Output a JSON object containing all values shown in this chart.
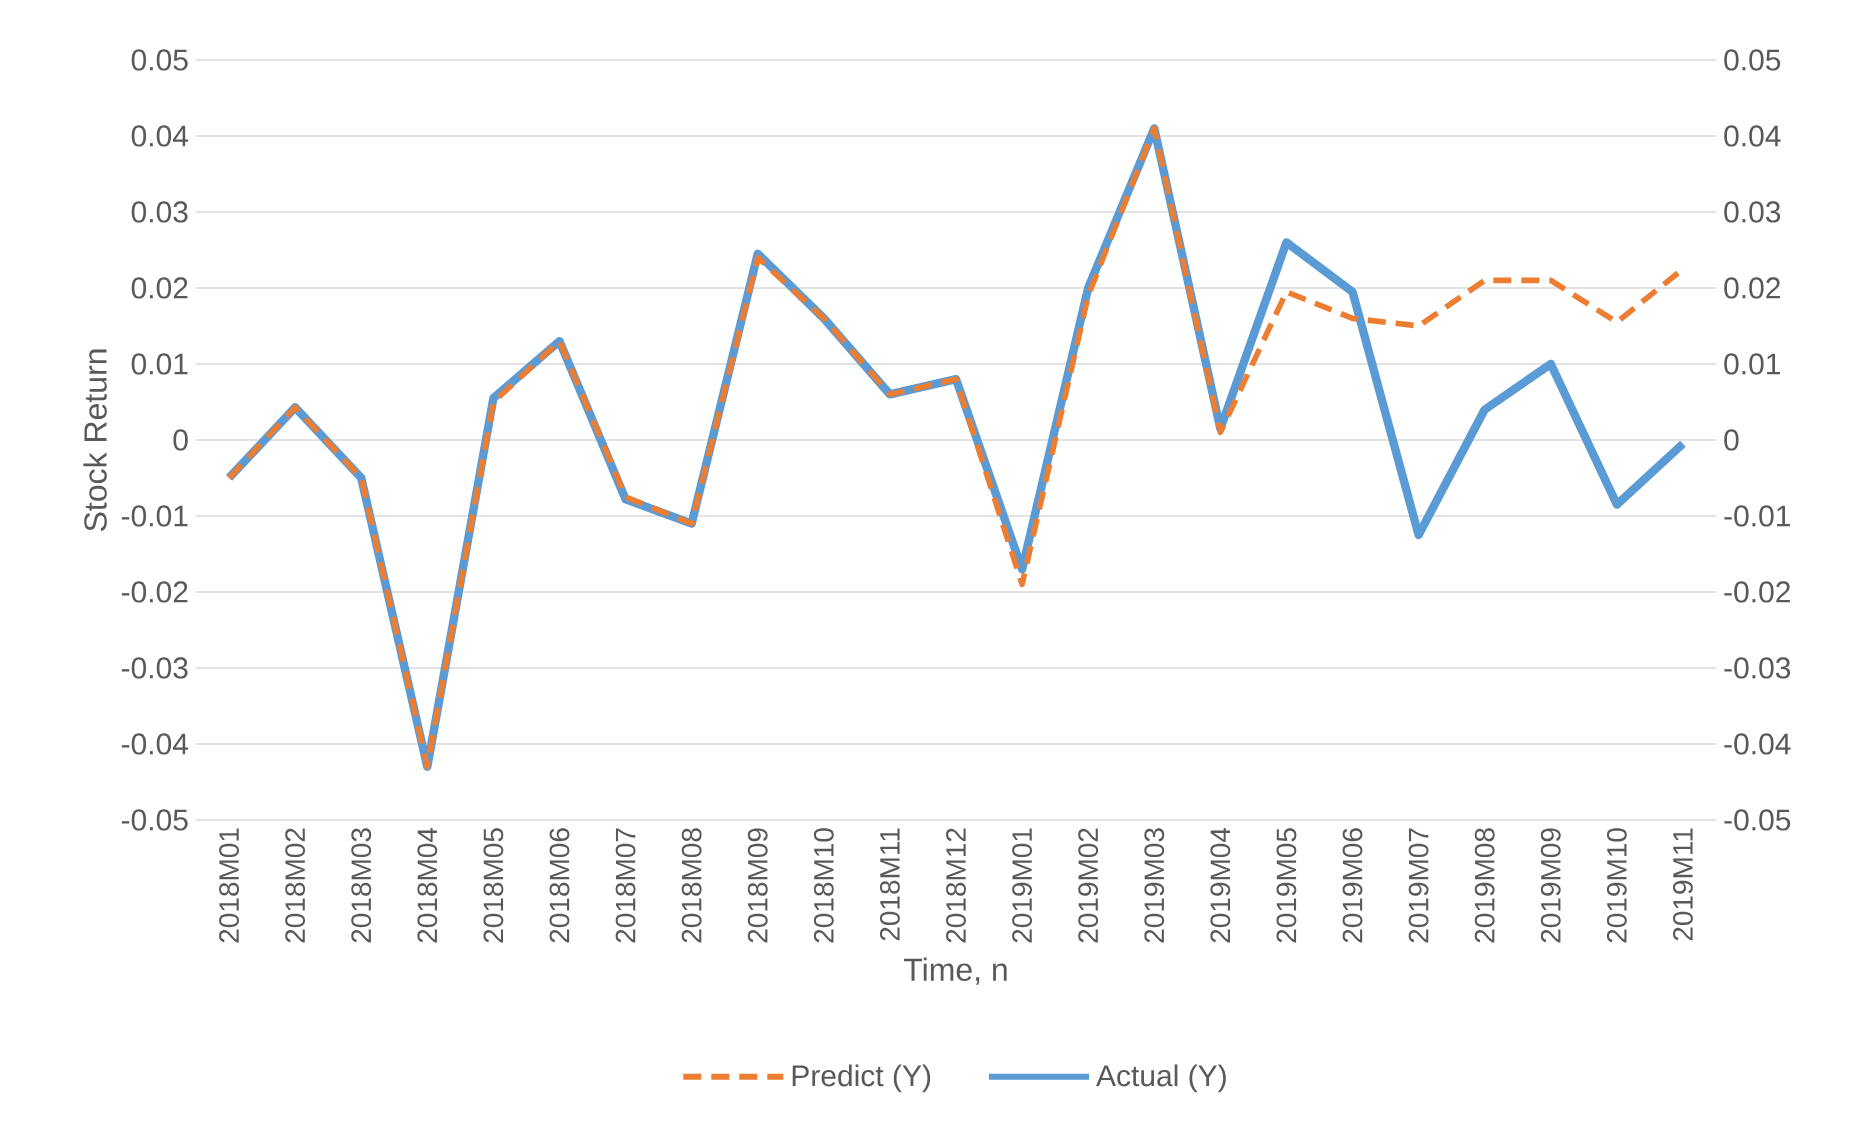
{
  "chart_data": {
    "type": "line",
    "xlabel": "Time, n",
    "ylabel": "Stock Return",
    "categories": [
      "2018M01",
      "2018M02",
      "2018M03",
      "2018M04",
      "2018M05",
      "2018M06",
      "2018M07",
      "2018M08",
      "2018M09",
      "2018M10",
      "2018M11",
      "2018M12",
      "2019M01",
      "2019M02",
      "2019M03",
      "2019M04",
      "2019M05",
      "2019M06",
      "2019M07",
      "2019M08",
      "2019M09",
      "2019M10",
      "2019M11"
    ],
    "series": [
      {
        "name": "Predict (Y)",
        "color": "#ed7d31",
        "line_style": "dashed",
        "values": [
          -0.005,
          0.0043,
          -0.005,
          -0.043,
          0.005,
          0.013,
          -0.0075,
          -0.011,
          0.024,
          0.016,
          0.006,
          0.008,
          -0.019,
          0.019,
          0.041,
          0.001,
          0.0195,
          0.016,
          0.015,
          0.021,
          0.021,
          0.0155,
          0.0225
        ]
      },
      {
        "name": "Actual (Y)",
        "color": "#5b9bd5",
        "line_style": "solid",
        "values": [
          -0.005,
          0.0043,
          -0.005,
          -0.043,
          0.0055,
          0.013,
          -0.0078,
          -0.011,
          0.0245,
          0.016,
          0.006,
          0.008,
          -0.017,
          0.02,
          0.041,
          0.0015,
          0.026,
          0.0195,
          -0.0125,
          0.004,
          0.01,
          -0.0085,
          -0.0005
        ]
      }
    ],
    "ylim": [
      -0.05,
      0.05
    ],
    "yticks": [
      -0.05,
      -0.04,
      -0.03,
      -0.02,
      -0.01,
      0,
      0.01,
      0.02,
      0.03,
      0.04,
      0.05
    ],
    "y2lim": [
      -0.05,
      0.05
    ],
    "y2ticks": [
      -0.05,
      -0.04,
      -0.03,
      -0.02,
      -0.01,
      0,
      0.01,
      0.02,
      0.03,
      0.04,
      0.05
    ],
    "grid": "y",
    "legend": "bottom",
    "marker": "none"
  }
}
